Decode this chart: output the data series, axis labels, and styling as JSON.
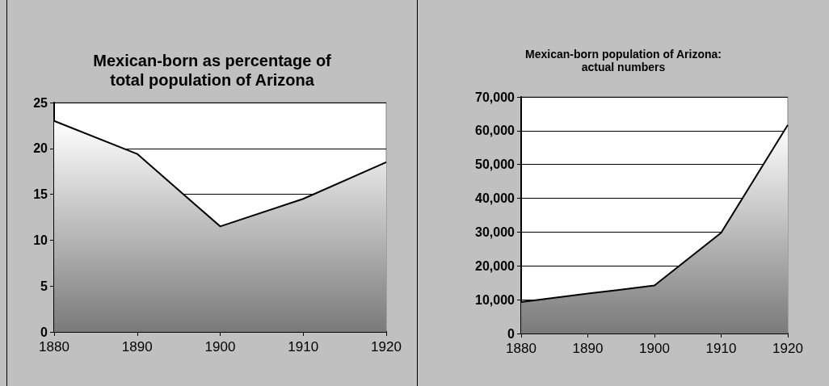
{
  "chart_data": [
    {
      "type": "area",
      "title": "Mexican-born as percentage of\ntotal population of Arizona",
      "x": [
        1880,
        1890,
        1900,
        1910,
        1920
      ],
      "series": [
        {
          "color": "#000000",
          "values": [
            23,
            19.4,
            11.5,
            14.5,
            18.5
          ]
        }
      ],
      "xlim": [
        1880,
        1920
      ],
      "xticks": [
        1880,
        1890,
        1900,
        1910,
        1920
      ],
      "ylim": [
        0,
        25
      ],
      "yticks": [
        0,
        5,
        10,
        15,
        20,
        25
      ],
      "grid": "y",
      "marker": "none"
    },
    {
      "type": "area",
      "title": "Mexican-born population of Arizona:\nactual numbers",
      "x": [
        1880,
        1890,
        1900,
        1910,
        1920
      ],
      "series": [
        {
          "color": "#000000",
          "values": [
            9300,
            11800,
            14200,
            29800,
            61700
          ]
        }
      ],
      "xlim": [
        1880,
        1920
      ],
      "xticks": [
        1880,
        1890,
        1900,
        1910,
        1920
      ],
      "ylim": [
        0,
        70000
      ],
      "yticks": [
        0,
        {
          "value": 10000,
          "label": "10,000"
        },
        {
          "value": 20000,
          "label": "20,000"
        },
        {
          "value": 30000,
          "label": "30,000"
        },
        {
          "value": 40000,
          "label": "40,000"
        },
        {
          "value": 50000,
          "label": "50,000"
        },
        {
          "value": 60000,
          "label": "60,000"
        },
        {
          "value": 70000,
          "label": "70,000"
        }
      ],
      "grid": "y",
      "marker": "none"
    }
  ]
}
